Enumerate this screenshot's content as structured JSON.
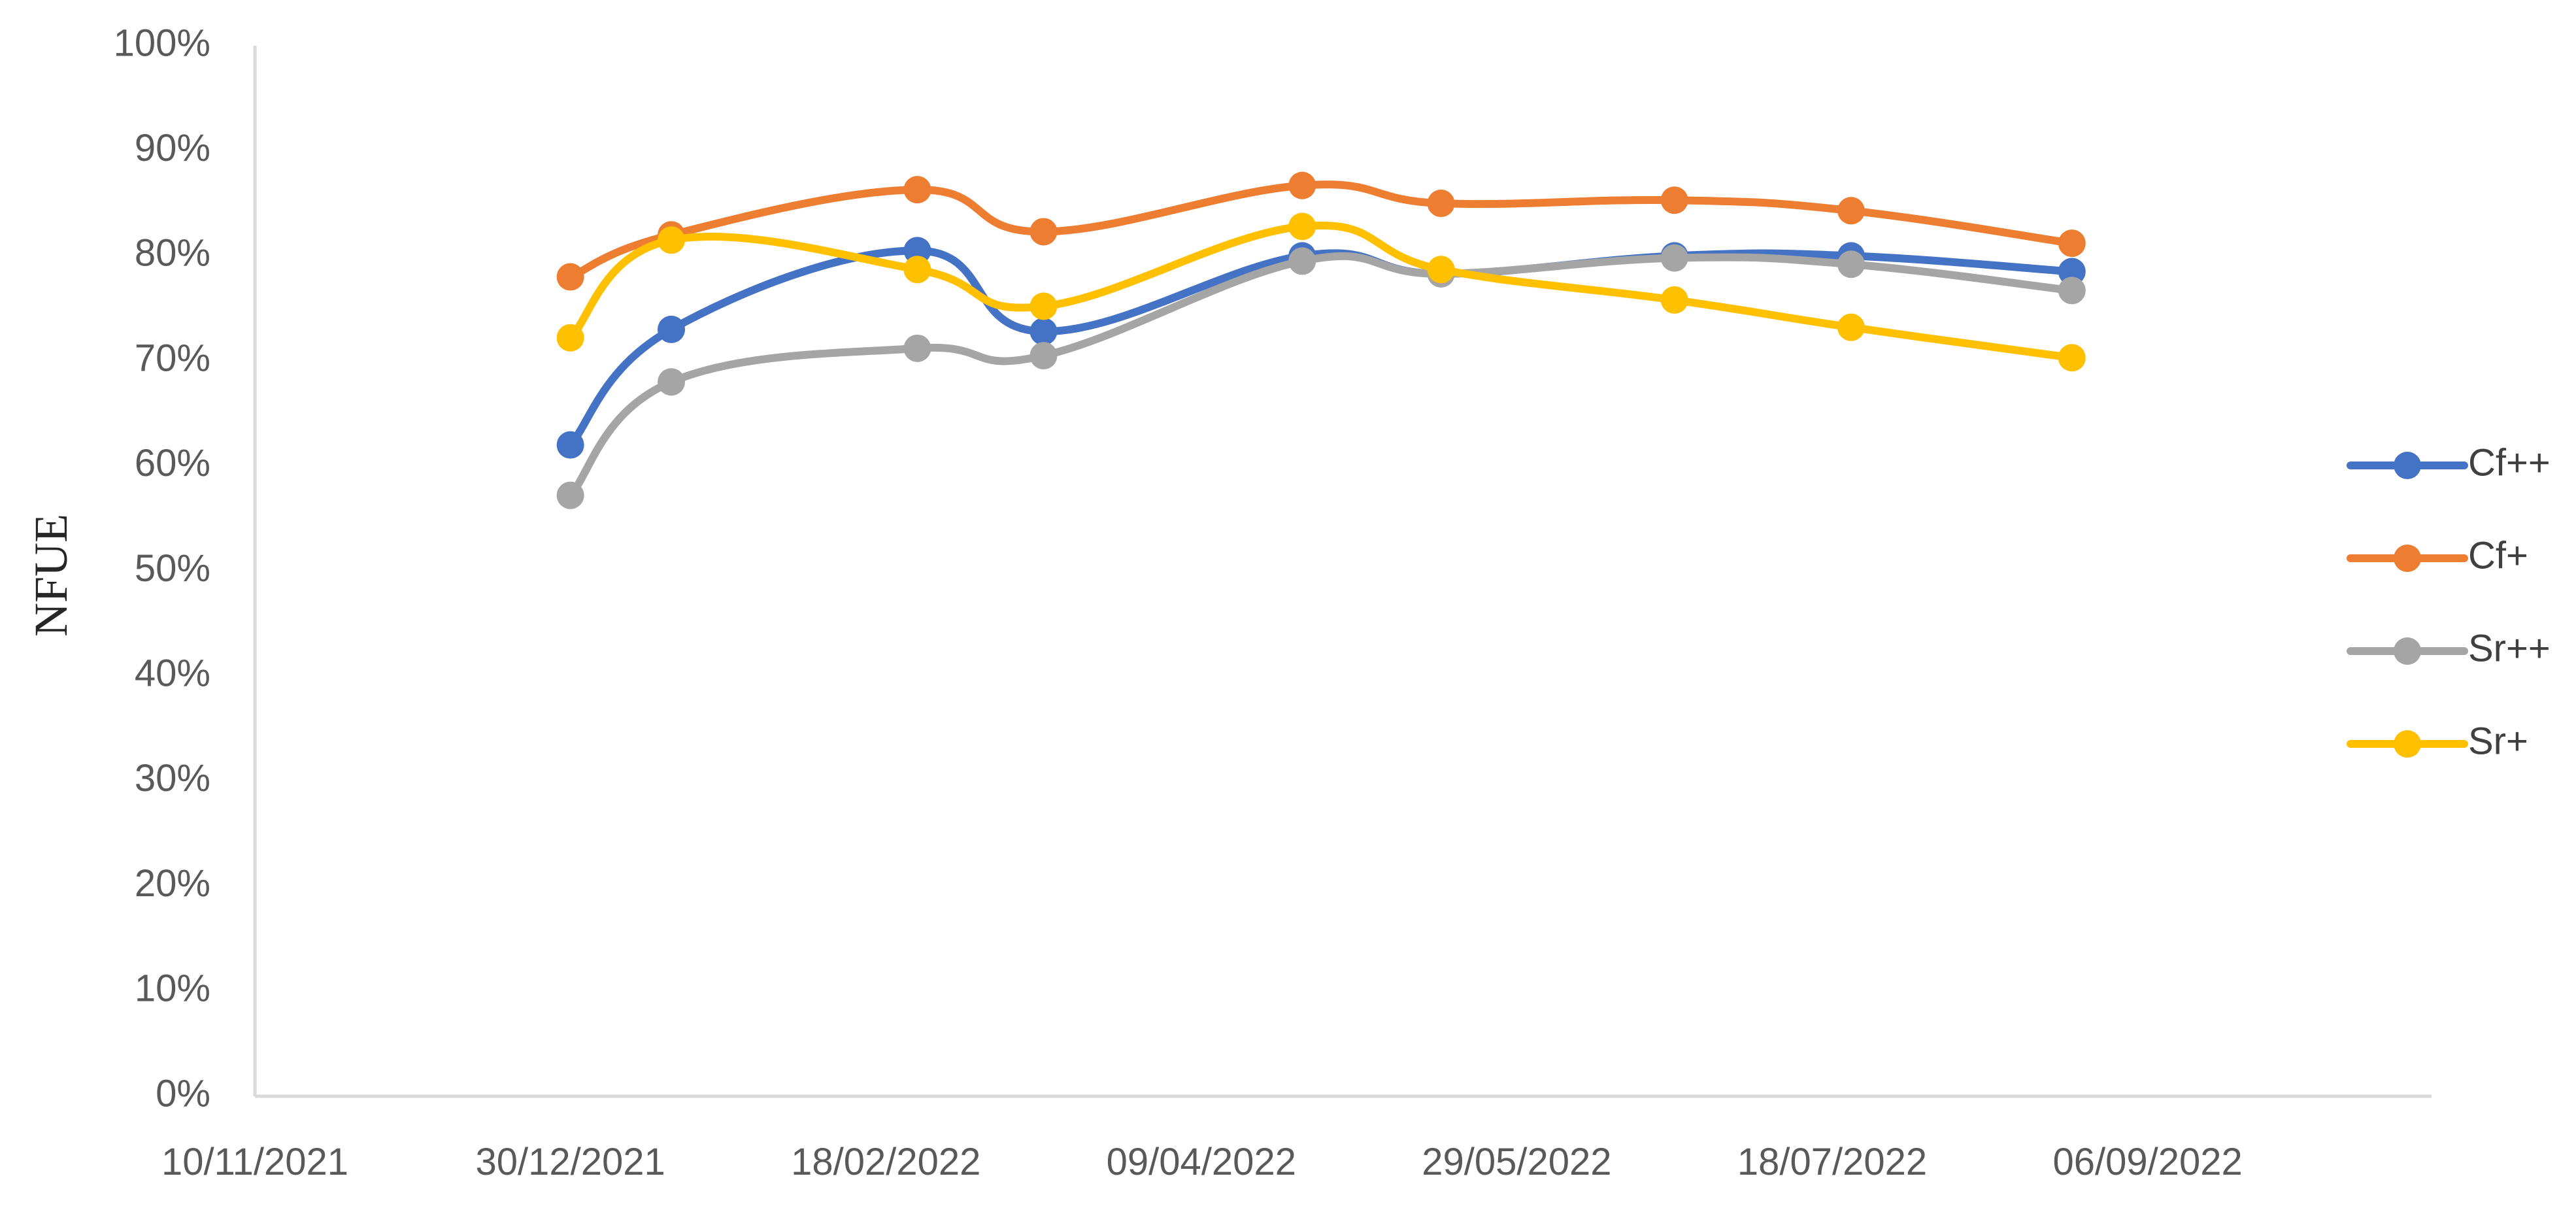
{
  "chart_data": {
    "type": "line",
    "title": "",
    "xlabel": "",
    "ylabel": "NFUE",
    "x_range": [
      "2021-11-10",
      "2022-10-21"
    ],
    "x_ticks": [
      "10/11/2021",
      "30/12/2021",
      "18/02/2022",
      "09/04/2022",
      "29/05/2022",
      "18/07/2022",
      "06/09/2022"
    ],
    "x_tick_dates": [
      "2021-11-10",
      "2021-12-30",
      "2022-02-18",
      "2022-04-09",
      "2022-05-29",
      "2022-07-18",
      "2022-09-06"
    ],
    "ylim": [
      0,
      100
    ],
    "y_ticks": [
      0,
      10,
      20,
      30,
      40,
      50,
      60,
      70,
      80,
      90,
      100
    ],
    "y_tick_labels": [
      "0%",
      "10%",
      "20%",
      "30%",
      "40%",
      "50%",
      "60%",
      "70%",
      "80%",
      "90%",
      "100%"
    ],
    "grid": false,
    "legend_position": "right",
    "x": [
      "2021-12-30",
      "2022-01-15",
      "2022-02-23",
      "2022-03-15",
      "2022-04-25",
      "2022-05-17",
      "2022-06-23",
      "2022-07-21",
      "2022-08-25"
    ],
    "series": [
      {
        "name": "Cf++",
        "color": "#4472C4",
        "values": [
          62,
          73,
          80.5,
          72.8,
          80,
          78.3,
          80,
          80,
          78.5
        ]
      },
      {
        "name": "Cf+",
        "color": "#ED7D31",
        "values": [
          78,
          82,
          86.3,
          82.3,
          86.7,
          85,
          85.3,
          84.3,
          81.2
        ]
      },
      {
        "name": "Sr++",
        "color": "#A5A5A5",
        "values": [
          57.2,
          68,
          71.2,
          70.5,
          79.5,
          78.3,
          79.8,
          79.2,
          76.7
        ]
      },
      {
        "name": "Sr+",
        "color": "#FFC000",
        "values": [
          72.2,
          81.5,
          78.7,
          75.2,
          82.8,
          78.7,
          75.8,
          73.2,
          70.3
        ]
      }
    ]
  }
}
